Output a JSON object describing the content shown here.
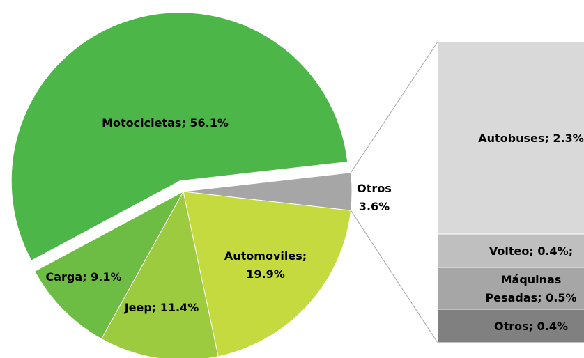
{
  "chart_data": {
    "type": "pie-of-bar",
    "categories": [
      "Otros",
      "Automoviles",
      "Jeep",
      "Carga",
      "Motocicletas"
    ],
    "values": [
      3.6,
      19.9,
      11.4,
      9.1,
      56.1
    ],
    "value_labels": [
      "Otros\n3.6%",
      "Automoviles;\n19.9%",
      "Jeep; 11.4%",
      "Carga; 9.1%",
      "Motocicletas; 56.1%"
    ],
    "colors": [
      "#a6a6a6",
      "#c5da3f",
      "#9dcb3f",
      "#6dbd45",
      "#4cb748"
    ],
    "exploded": "Motocicletas",
    "bar": {
      "categories": [
        "Autobuses",
        "Volteo",
        "Máquinas Pesadas",
        "Otros"
      ],
      "values": [
        2.3,
        0.4,
        0.5,
        0.4
      ],
      "value_labels": [
        "Autobuses; 2.3%",
        "Volteo; 0.4%;",
        "Máquinas\nPesadas; 0.5%",
        "Otros; 0.4%"
      ],
      "colors": [
        "#d9d9d9",
        "#bfbfbf",
        "#a6a6a6",
        "#808080"
      ]
    }
  }
}
